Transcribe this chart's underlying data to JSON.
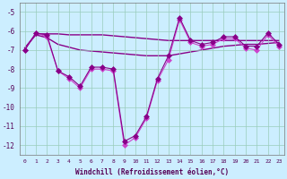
{
  "xlabel": "Windchill (Refroidissement éolien,°C)",
  "x": [
    0,
    1,
    2,
    3,
    4,
    5,
    6,
    7,
    8,
    9,
    10,
    11,
    12,
    13,
    14,
    15,
    16,
    17,
    18,
    19,
    20,
    21,
    22,
    23
  ],
  "spiky1": [
    -7.0,
    -6.1,
    -6.2,
    -8.1,
    -8.4,
    -8.9,
    -7.9,
    -7.9,
    -8.0,
    -11.8,
    -11.5,
    -10.5,
    -8.5,
    -7.3,
    -5.3,
    -6.5,
    -6.7,
    -6.6,
    -6.3,
    -6.3,
    -6.8,
    -6.8,
    -6.1,
    -6.7
  ],
  "spiky2": [
    -7.0,
    -6.1,
    -6.3,
    -8.1,
    -8.5,
    -9.0,
    -8.0,
    -8.0,
    -8.1,
    -12.0,
    -11.6,
    -10.6,
    -8.6,
    -7.5,
    -5.4,
    -6.6,
    -6.8,
    -6.7,
    -6.4,
    -6.4,
    -6.9,
    -7.0,
    -6.2,
    -6.8
  ],
  "flat1": [
    -6.9,
    -6.15,
    -6.15,
    -6.15,
    -6.2,
    -6.2,
    -6.2,
    -6.2,
    -6.25,
    -6.3,
    -6.35,
    -6.4,
    -6.45,
    -6.5,
    -6.5,
    -6.5,
    -6.5,
    -6.5,
    -6.5,
    -6.5,
    -6.5,
    -6.5,
    -6.5,
    -6.5
  ],
  "flat2": [
    -6.9,
    -6.2,
    -6.35,
    -6.7,
    -6.85,
    -7.0,
    -7.05,
    -7.1,
    -7.15,
    -7.2,
    -7.25,
    -7.3,
    -7.3,
    -7.3,
    -7.2,
    -7.1,
    -7.0,
    -6.9,
    -6.8,
    -6.75,
    -6.7,
    -6.7,
    -6.65,
    -6.6
  ],
  "line_color_dark": "#880088",
  "line_color_light": "#cc44cc",
  "bg_color": "#cceeff",
  "grid_color": "#99ccbb",
  "ylim": [
    -12.5,
    -4.5
  ],
  "yticks": [
    -12,
    -11,
    -10,
    -9,
    -8,
    -7,
    -6,
    -5
  ],
  "markersize": 3.0
}
